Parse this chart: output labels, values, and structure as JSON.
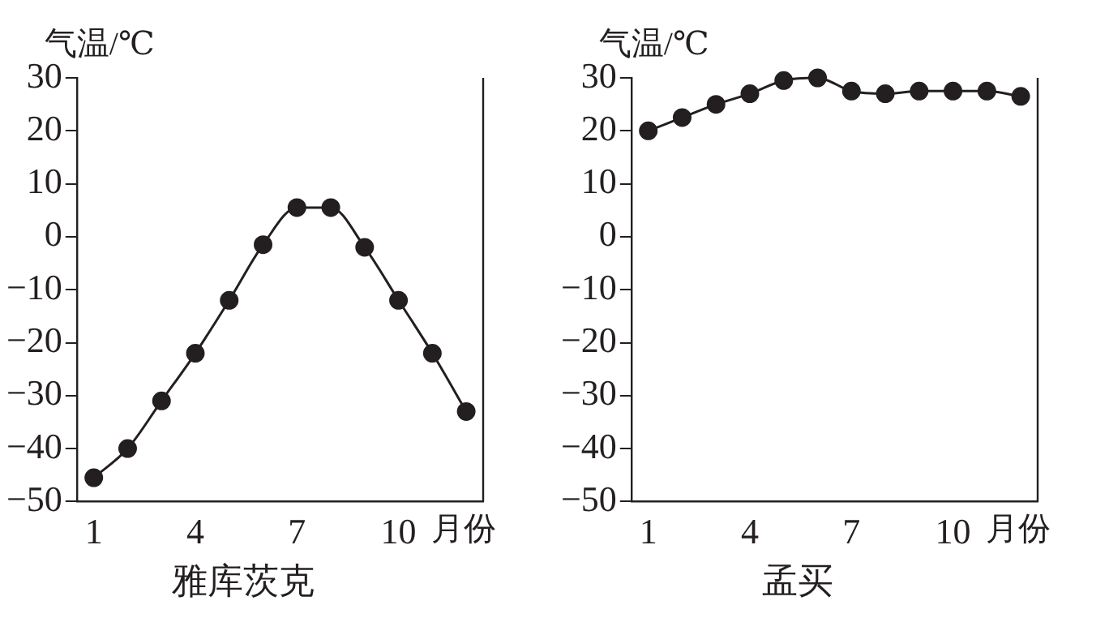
{
  "chart_data": [
    {
      "type": "line",
      "title": "雅库茨克",
      "xlabel": "月份",
      "ylabel": "气温/℃",
      "categories": [
        "1",
        null,
        null,
        "4",
        null,
        null,
        "7",
        null,
        null,
        "10",
        null,
        null
      ],
      "series": [
        {
          "color": "#231f20",
          "values": [
            -45.5,
            -40,
            -31,
            -22,
            -12,
            -1.5,
            5.5,
            5.5,
            -2,
            -12,
            -22,
            -33
          ]
        }
      ],
      "ylim": [
        -50,
        30
      ],
      "yticks": [
        -50,
        -40,
        -30,
        -20,
        -10,
        0,
        10,
        20,
        30
      ],
      "grid": false,
      "legend": false,
      "marker": "circle",
      "line_style": "solid"
    },
    {
      "type": "line",
      "title": "孟买",
      "xlabel": "月份",
      "ylabel": "气温/℃",
      "categories": [
        "1",
        null,
        null,
        "4",
        null,
        null,
        "7",
        null,
        null,
        "10",
        null,
        null
      ],
      "series": [
        {
          "color": "#231f20",
          "values": [
            20,
            22.5,
            25,
            27,
            29.5,
            30,
            27.5,
            27,
            27.5,
            27.5,
            27.5,
            26.5
          ]
        }
      ],
      "ylim": [
        -50,
        30
      ],
      "yticks": [
        -50,
        -40,
        -30,
        -20,
        -10,
        0,
        10,
        20,
        30
      ],
      "grid": false,
      "legend": false,
      "marker": "circle",
      "line_style": "solid"
    }
  ]
}
